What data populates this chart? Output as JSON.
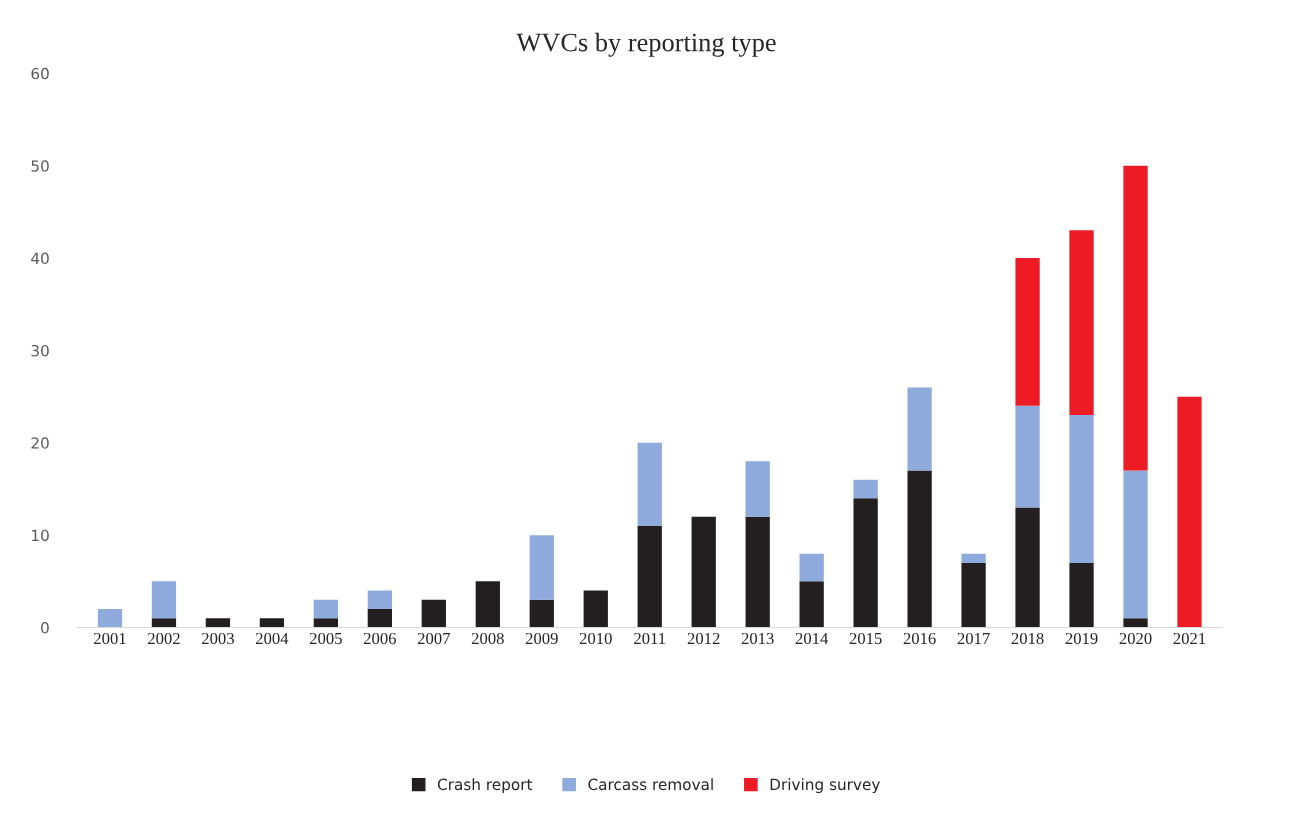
{
  "chart_data": {
    "type": "bar",
    "title": "WVCs by reporting type",
    "stacked": true,
    "categories": [
      "2001",
      "2002",
      "2003",
      "2004",
      "2005",
      "2006",
      "2007",
      "2008",
      "2009",
      "2010",
      "2011",
      "2012",
      "2013",
      "2014",
      "2015",
      "2016",
      "2017",
      "2018",
      "2019",
      "2020",
      "2021"
    ],
    "series": [
      {
        "name": "Crash report",
        "color": "#231f20",
        "values": [
          0,
          1,
          1,
          1,
          1,
          2,
          3,
          5,
          3,
          4,
          11,
          12,
          12,
          5,
          14,
          17,
          7,
          13,
          7,
          1,
          0
        ]
      },
      {
        "name": "Carcass removal",
        "color": "#8faadc",
        "values": [
          2,
          4,
          0,
          0,
          2,
          2,
          0,
          0,
          7,
          0,
          9,
          0,
          6,
          3,
          2,
          9,
          1,
          11,
          16,
          16,
          0
        ]
      },
      {
        "name": "Driving survey",
        "color": "#ed1c24",
        "values": [
          0,
          0,
          0,
          0,
          0,
          0,
          0,
          0,
          0,
          0,
          0,
          0,
          0,
          0,
          0,
          0,
          0,
          16,
          20,
          33,
          25
        ]
      }
    ],
    "ylim": [
      0,
      60
    ],
    "yticks": [
      0,
      10,
      20,
      30,
      40,
      50,
      60
    ],
    "grid": false,
    "legend": "bottom"
  }
}
